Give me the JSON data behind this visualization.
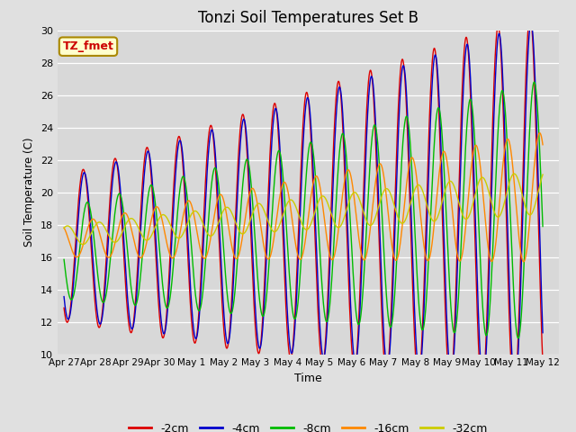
{
  "title": "Tonzi Soil Temperatures Set B",
  "xlabel": "Time",
  "ylabel": "Soil Temperature (C)",
  "ylim": [
    10,
    30
  ],
  "annotation_text": "TZ_fmet",
  "annotation_color": "#cc0000",
  "annotation_bg": "#ffffcc",
  "annotation_border": "#aa8800",
  "series": [
    {
      "label": "-2cm",
      "color": "#dd0000"
    },
    {
      "label": "-4cm",
      "color": "#0000cc"
    },
    {
      "label": "-8cm",
      "color": "#00bb00"
    },
    {
      "label": "-16cm",
      "color": "#ff8800"
    },
    {
      "label": "-32cm",
      "color": "#cccc00"
    }
  ],
  "x_ticks": [
    "Apr 27",
    "Apr 28",
    "Apr 29",
    "Apr 30",
    "May 1",
    "May 2",
    "May 3",
    "May 4",
    "May 5",
    "May 6",
    "May 7",
    "May 8",
    "May 9",
    "May 10",
    "May 11",
    "May 12"
  ],
  "yticks": [
    10,
    12,
    14,
    16,
    18,
    20,
    22,
    24,
    26,
    28,
    30
  ],
  "legend_fontsize": 9,
  "title_fontsize": 12,
  "tick_fontsize": 8
}
